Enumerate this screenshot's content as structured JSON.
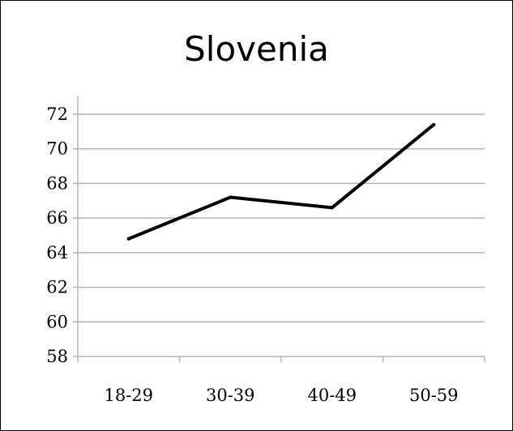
{
  "chart_data": {
    "type": "line",
    "title": "Slovenia",
    "categories": [
      "18-29",
      "30-39",
      "40-49",
      "50-59"
    ],
    "series": [
      {
        "values": [
          64.8,
          67.2,
          66.6,
          71.4
        ]
      }
    ],
    "ylim": [
      58,
      72
    ],
    "yticks": [
      58,
      60,
      62,
      64,
      66,
      68,
      70,
      72
    ],
    "grid": true,
    "legend": "none",
    "line_color": "#000000",
    "grid_color": "#b3b3b3"
  }
}
